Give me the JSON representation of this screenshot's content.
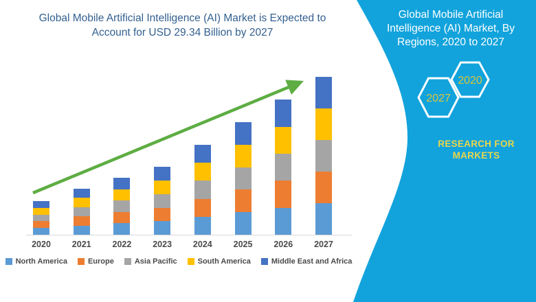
{
  "chart": {
    "title": "Global Mobile Artificial Intelligence (AI) Market is Expected to Account for USD 29.34 Billion by 2027"
  },
  "chart_data": {
    "type": "bar",
    "stacked": true,
    "title": "Global Mobile Artificial Intelligence (AI) Market is Expected to Account for USD 29.34 Billion by 2027",
    "unit": "USD Billion",
    "categories": [
      "2020",
      "2021",
      "2022",
      "2023",
      "2024",
      "2025",
      "2026",
      "2027"
    ],
    "series": [
      {
        "name": "North America",
        "color": "#5B9BD5",
        "values": [
          1.25,
          1.71,
          2.12,
          2.52,
          3.34,
          4.18,
          5.02,
          5.87
        ]
      },
      {
        "name": "Europe",
        "color": "#ED7D31",
        "values": [
          1.25,
          1.71,
          2.12,
          2.52,
          3.34,
          4.18,
          5.02,
          5.87
        ]
      },
      {
        "name": "Asia Pacific",
        "color": "#A5A5A5",
        "values": [
          1.25,
          1.71,
          2.12,
          2.52,
          3.34,
          4.18,
          5.02,
          5.87
        ]
      },
      {
        "name": "South America",
        "color": "#FFC000",
        "values": [
          1.25,
          1.71,
          2.12,
          2.52,
          3.34,
          4.18,
          5.02,
          5.87
        ]
      },
      {
        "name": "Middle East and Africa",
        "color": "#4472C4",
        "values": [
          1.25,
          1.71,
          2.12,
          2.52,
          3.34,
          4.18,
          5.02,
          5.87
        ]
      }
    ],
    "totals": [
      6.25,
      8.55,
      10.6,
      12.6,
      16.7,
      20.9,
      25.1,
      29.34
    ],
    "ylim": [
      0,
      30
    ],
    "gridlines": false,
    "legend_position": "bottom",
    "annotations": [
      "upward trend arrow"
    ]
  },
  "sidebar": {
    "title": "Global Mobile Artificial Intelligence (AI) Market, By Regions, 2020 to 2027",
    "hexagons": [
      {
        "label": "2027"
      },
      {
        "label": "2020"
      }
    ],
    "brand": "RESEARCH FOR MARKETS"
  },
  "colors": {
    "panel_teal": "#12A3DC",
    "chart_title_blue": "#325F8F",
    "arrow_green": "#5EAD43",
    "axis_text": "#4A4A4A",
    "axis_line": "#D9D9D9",
    "hex_number_yellow": "#D9C53C",
    "brand_yellow": "#EAD64B"
  }
}
